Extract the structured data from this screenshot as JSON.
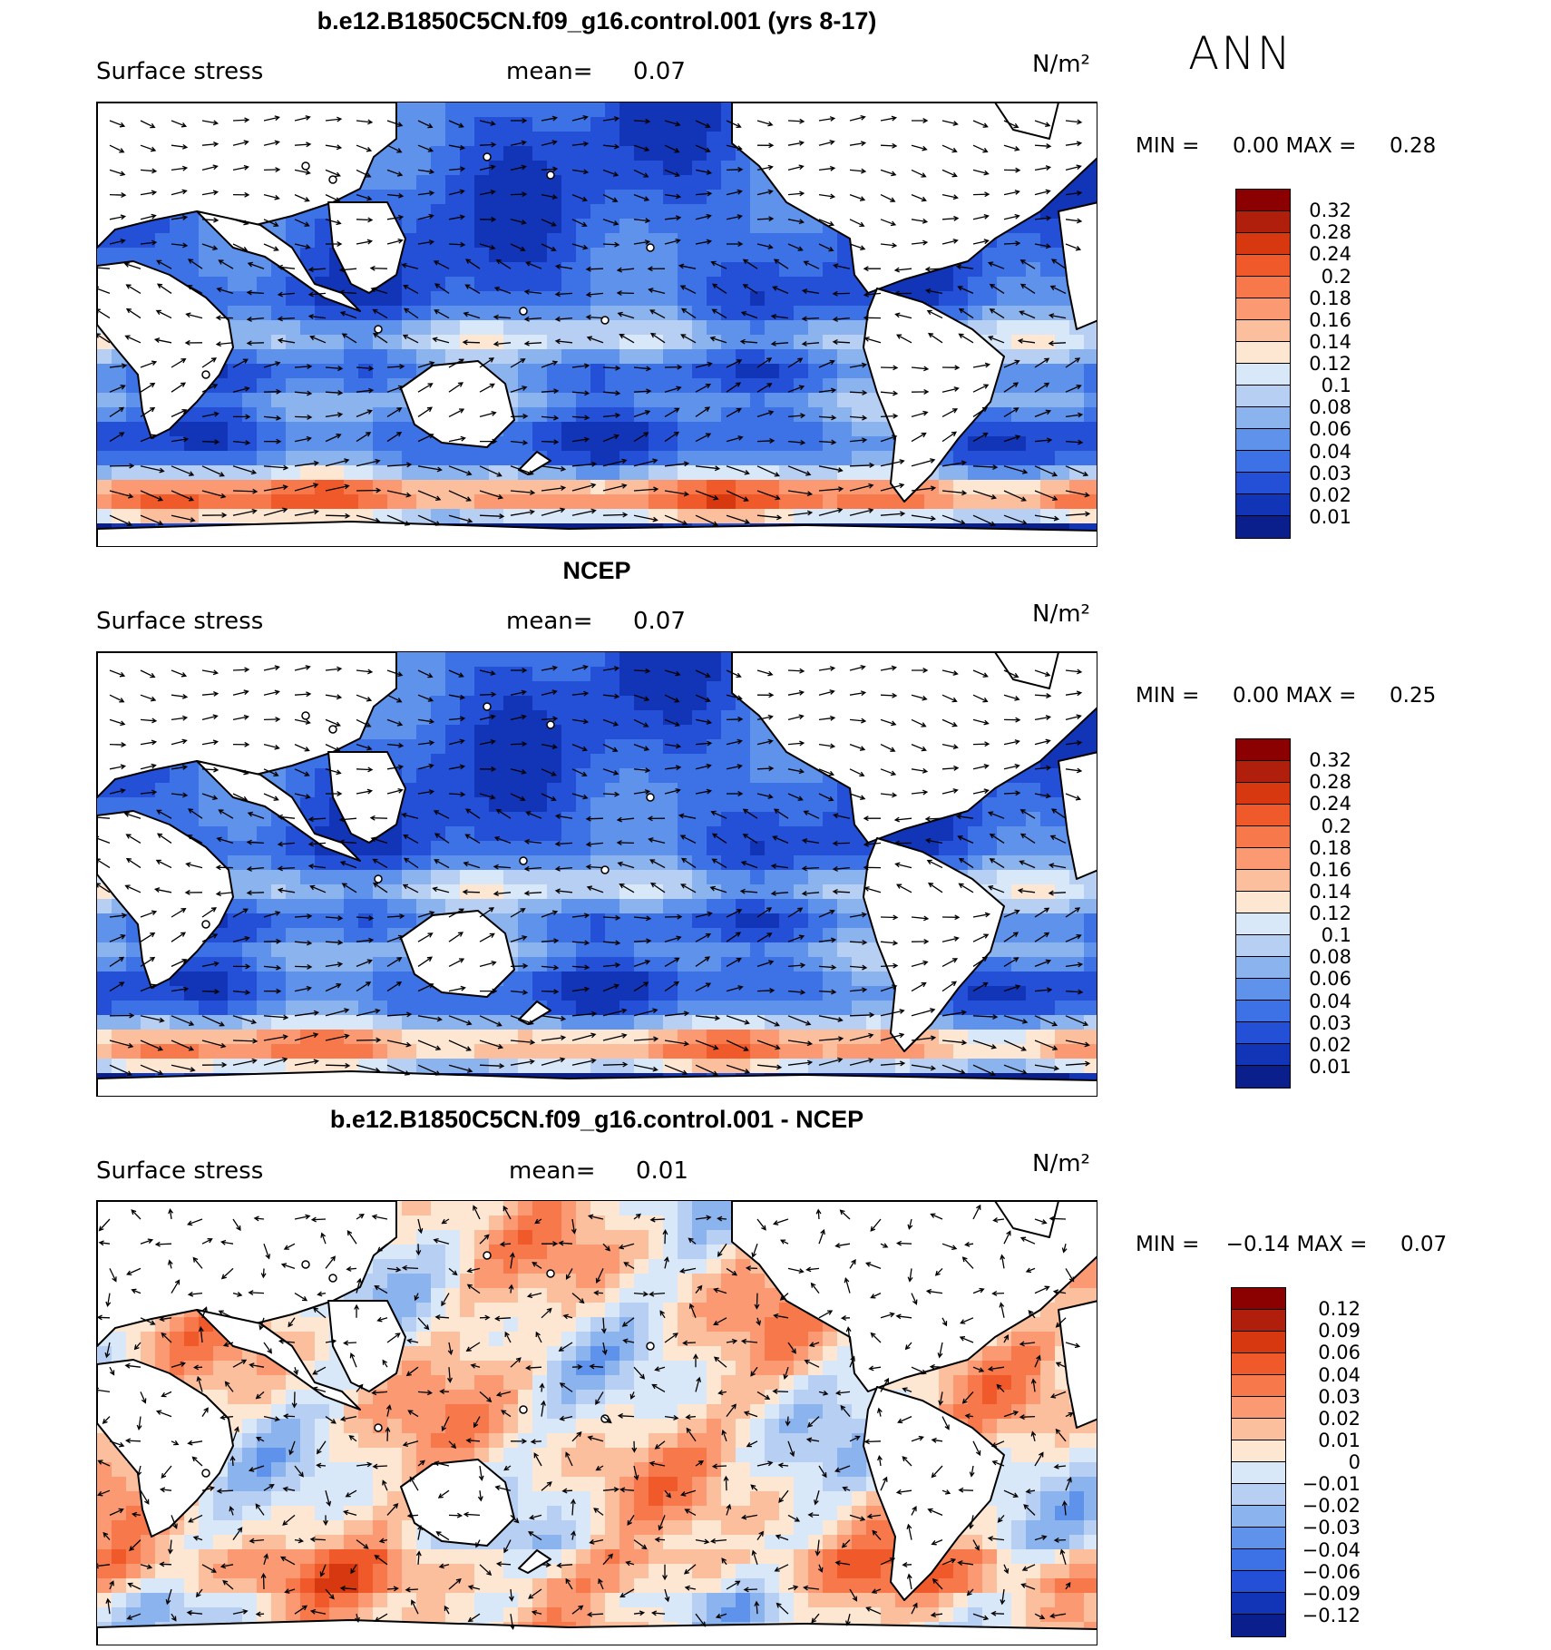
{
  "season": "ANN",
  "panels": [
    {
      "title": "b.e12.B1850C5CN.f09_g16.control.001 (yrs 8-17)",
      "variable": "Surface stress",
      "mean_label": "mean=",
      "mean_value": "0.07",
      "units": "N/m²",
      "min_label": "MIN =",
      "min_value": "0.00",
      "max_label": "MAX =",
      "max_value": "0.28",
      "colorbar_levels": [
        "0.32",
        "0.28",
        "0.24",
        "0.2",
        "0.18",
        "0.16",
        "0.14",
        "0.12",
        "0.1",
        "0.08",
        "0.06",
        "0.04",
        "0.03",
        "0.02",
        "0.01"
      ],
      "colorbar_colors": [
        "#8b0000",
        "#b01e0c",
        "#d8380f",
        "#f0592a",
        "#f7794b",
        "#fb9a72",
        "#fcbf9d",
        "#fde6d2",
        "#d9e8f8",
        "#b7cff2",
        "#8bb3ee",
        "#5f92ea",
        "#3d71e6",
        "#2450d8",
        "#1235b8",
        "#0a1f8c"
      ]
    },
    {
      "title": "NCEP",
      "variable": "Surface stress",
      "mean_label": "mean=",
      "mean_value": "0.07",
      "units": "N/m²",
      "min_label": "MIN =",
      "min_value": "0.00",
      "max_label": "MAX =",
      "max_value": "0.25",
      "colorbar_levels": [
        "0.32",
        "0.28",
        "0.24",
        "0.2",
        "0.18",
        "0.16",
        "0.14",
        "0.12",
        "0.1",
        "0.08",
        "0.06",
        "0.04",
        "0.03",
        "0.02",
        "0.01"
      ],
      "colorbar_colors": [
        "#8b0000",
        "#b01e0c",
        "#d8380f",
        "#f0592a",
        "#f7794b",
        "#fb9a72",
        "#fcbf9d",
        "#fde6d2",
        "#d9e8f8",
        "#b7cff2",
        "#8bb3ee",
        "#5f92ea",
        "#3d71e6",
        "#2450d8",
        "#1235b8",
        "#0a1f8c"
      ]
    },
    {
      "title": "b.e12.B1850C5CN.f09_g16.control.001 - NCEP",
      "variable": "Surface stress",
      "mean_label": "mean=",
      "mean_value": "0.01",
      "units": "N/m²",
      "min_label": "MIN =",
      "min_value": "−0.14",
      "max_label": "MAX =",
      "max_value": "0.07",
      "colorbar_levels": [
        "0.12",
        "0.09",
        "0.06",
        "0.04",
        "0.03",
        "0.02",
        "0.01",
        "0",
        "−0.01",
        "−0.02",
        "−0.03",
        "−0.04",
        "−0.06",
        "−0.09",
        "−0.12"
      ],
      "colorbar_colors": [
        "#8b0000",
        "#b01e0c",
        "#d8380f",
        "#f0592a",
        "#f7794b",
        "#fb9a72",
        "#fcbf9d",
        "#fde6d2",
        "#d9e8f8",
        "#b7cff2",
        "#8bb3ee",
        "#5f92ea",
        "#3d71e6",
        "#2450d8",
        "#1235b8",
        "#0a1f8c"
      ]
    }
  ]
}
